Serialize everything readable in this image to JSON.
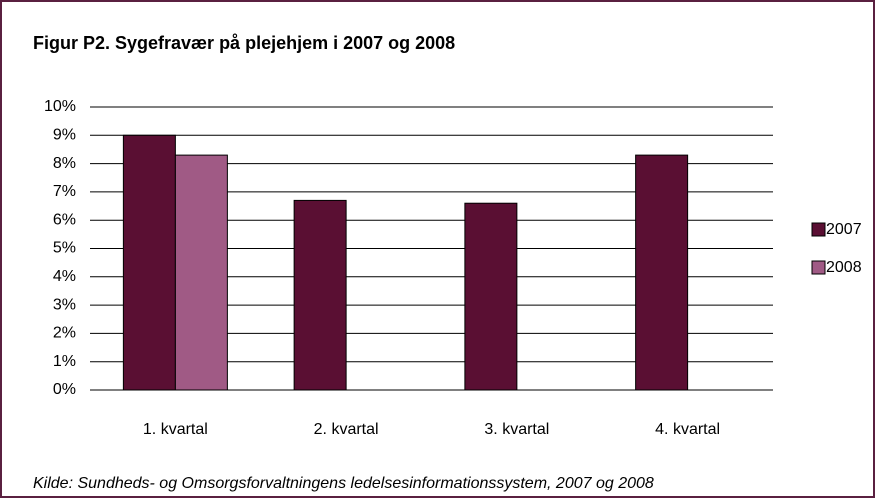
{
  "chart_data": {
    "type": "bar",
    "title": "Figur P2. Sygefravær på plejehjem i 2007 og 2008",
    "source": "Kilde: Sundheds- og Omsorgsforvaltningens ledelsesinformationssystem, 2007 og 2008",
    "categories": [
      "1. kvartal",
      "2. kvartal",
      "3. kvartal",
      "4. kvartal"
    ],
    "series": [
      {
        "name": "2007",
        "color": "#5a0f33",
        "values": [
          9.0,
          6.7,
          6.6,
          8.3
        ]
      },
      {
        "name": "2008",
        "color": "#a05a85",
        "values": [
          8.3,
          null,
          null,
          null
        ]
      }
    ],
    "ylim": [
      0,
      10
    ],
    "yticks": [
      {
        "value": 0,
        "label": "0%"
      },
      {
        "value": 1,
        "label": "1%"
      },
      {
        "value": 2,
        "label": "2%"
      },
      {
        "value": 3,
        "label": "3%"
      },
      {
        "value": 4,
        "label": "4%"
      },
      {
        "value": 5,
        "label": "5%"
      },
      {
        "value": 6,
        "label": "6%"
      },
      {
        "value": 7,
        "label": "7%"
      },
      {
        "value": 8,
        "label": "8%"
      },
      {
        "value": 9,
        "label": "9%"
      },
      {
        "value": 10,
        "label": "10%"
      }
    ],
    "grid": true,
    "legend": "right"
  }
}
